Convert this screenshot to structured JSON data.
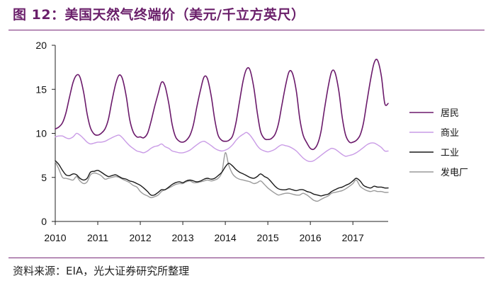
{
  "figure": {
    "title": "图 12：美国天然气终端价（美元/千立方英尺）",
    "source": "资料来源：EIA，光大证券研究所整理"
  },
  "colors": {
    "accent": "#6a1f6a",
    "residential": "#6b1a6b",
    "commercial": "#c99be6",
    "industrial": "#1a1a1a",
    "power": "#9a9a9a"
  },
  "chart_data": {
    "type": "line",
    "title": "",
    "xlabel": "",
    "ylabel": "",
    "xlim": [
      2010.0,
      2017.83
    ],
    "ylim": [
      0,
      20
    ],
    "yticks": [
      0,
      5,
      10,
      15,
      20
    ],
    "xticks": [
      "2010",
      "2011",
      "2012",
      "2013",
      "2014",
      "2015",
      "2016",
      "2017"
    ],
    "grid": false,
    "legend_position": "right",
    "series": [
      {
        "name": "居民",
        "color_key": "residential",
        "x": [
          2010.0,
          2010.08,
          2010.17,
          2010.25,
          2010.33,
          2010.42,
          2010.5,
          2010.58,
          2010.67,
          2010.75,
          2010.83,
          2010.92,
          2011.0,
          2011.08,
          2011.17,
          2011.25,
          2011.33,
          2011.42,
          2011.5,
          2011.58,
          2011.67,
          2011.75,
          2011.83,
          2011.92,
          2012.0,
          2012.08,
          2012.17,
          2012.25,
          2012.33,
          2012.42,
          2012.5,
          2012.58,
          2012.67,
          2012.75,
          2012.83,
          2012.92,
          2013.0,
          2013.08,
          2013.17,
          2013.25,
          2013.33,
          2013.42,
          2013.5,
          2013.58,
          2013.67,
          2013.75,
          2013.83,
          2013.92,
          2014.0,
          2014.08,
          2014.17,
          2014.25,
          2014.33,
          2014.42,
          2014.5,
          2014.58,
          2014.67,
          2014.75,
          2014.83,
          2014.92,
          2015.0,
          2015.08,
          2015.17,
          2015.25,
          2015.33,
          2015.42,
          2015.5,
          2015.58,
          2015.67,
          2015.75,
          2015.83,
          2015.92,
          2016.0,
          2016.08,
          2016.17,
          2016.25,
          2016.33,
          2016.42,
          2016.5,
          2016.58,
          2016.67,
          2016.75,
          2016.83,
          2016.92,
          2017.0,
          2017.08,
          2017.17,
          2017.25,
          2017.33,
          2017.42,
          2017.5,
          2017.58,
          2017.67,
          2017.75,
          2017.83
        ],
        "y": [
          10.5,
          10.7,
          11.2,
          12.3,
          14.0,
          15.8,
          16.6,
          16.4,
          14.6,
          12.2,
          10.6,
          9.9,
          9.8,
          10.0,
          10.5,
          11.6,
          13.6,
          15.6,
          16.6,
          16.2,
          14.2,
          11.6,
          10.2,
          9.6,
          9.6,
          9.5,
          10.0,
          11.3,
          12.9,
          14.5,
          15.8,
          15.4,
          13.4,
          11.0,
          9.6,
          9.1,
          9.0,
          9.2,
          9.8,
          11.0,
          13.0,
          15.0,
          16.4,
          16.2,
          14.2,
          11.6,
          9.8,
          9.2,
          9.1,
          9.2,
          9.7,
          11.2,
          13.5,
          16.0,
          17.3,
          17.2,
          15.2,
          12.4,
          10.2,
          9.4,
          9.3,
          9.4,
          9.9,
          11.1,
          13.2,
          15.5,
          17.0,
          16.8,
          14.8,
          11.7,
          9.8,
          8.9,
          8.3,
          8.2,
          8.8,
          10.2,
          12.7,
          15.3,
          17.0,
          16.9,
          14.8,
          11.8,
          9.8,
          9.0,
          9.0,
          9.2,
          9.8,
          11.2,
          13.6,
          16.2,
          18.0,
          18.3,
          16.5,
          13.4,
          13.4
        ]
      },
      {
        "name": "商业",
        "color_key": "commercial",
        "x": [
          2010.0,
          2010.08,
          2010.17,
          2010.25,
          2010.33,
          2010.42,
          2010.5,
          2010.58,
          2010.67,
          2010.75,
          2010.83,
          2010.92,
          2011.0,
          2011.08,
          2011.17,
          2011.25,
          2011.33,
          2011.42,
          2011.5,
          2011.58,
          2011.67,
          2011.75,
          2011.83,
          2011.92,
          2012.0,
          2012.08,
          2012.17,
          2012.25,
          2012.33,
          2012.42,
          2012.5,
          2012.58,
          2012.67,
          2012.75,
          2012.83,
          2012.92,
          2013.0,
          2013.08,
          2013.17,
          2013.25,
          2013.33,
          2013.42,
          2013.5,
          2013.58,
          2013.67,
          2013.75,
          2013.83,
          2013.92,
          2014.0,
          2014.08,
          2014.17,
          2014.25,
          2014.33,
          2014.42,
          2014.5,
          2014.58,
          2014.67,
          2014.75,
          2014.83,
          2014.92,
          2015.0,
          2015.08,
          2015.17,
          2015.25,
          2015.33,
          2015.42,
          2015.5,
          2015.58,
          2015.67,
          2015.75,
          2015.83,
          2015.92,
          2016.0,
          2016.08,
          2016.17,
          2016.25,
          2016.33,
          2016.42,
          2016.5,
          2016.58,
          2016.67,
          2016.75,
          2016.83,
          2016.92,
          2017.0,
          2017.08,
          2017.17,
          2017.25,
          2017.33,
          2017.42,
          2017.5,
          2017.58,
          2017.67,
          2017.75,
          2017.83
        ],
        "y": [
          9.6,
          9.7,
          9.7,
          9.5,
          9.4,
          9.6,
          10.0,
          9.8,
          9.4,
          9.0,
          8.8,
          8.9,
          9.0,
          9.0,
          9.1,
          9.3,
          9.5,
          9.7,
          9.8,
          9.5,
          9.0,
          8.6,
          8.3,
          8.0,
          7.9,
          7.8,
          8.0,
          8.3,
          8.5,
          8.6,
          8.8,
          8.5,
          8.3,
          8.0,
          7.9,
          7.8,
          7.8,
          7.9,
          8.1,
          8.4,
          8.7,
          9.0,
          9.1,
          8.9,
          8.6,
          8.3,
          8.1,
          8.0,
          8.1,
          8.3,
          8.7,
          9.2,
          9.6,
          9.9,
          10.1,
          9.8,
          9.2,
          8.6,
          8.2,
          8.0,
          7.9,
          8.0,
          8.2,
          8.5,
          8.7,
          8.6,
          8.5,
          8.3,
          8.0,
          7.6,
          7.2,
          6.9,
          6.8,
          6.9,
          7.2,
          7.5,
          7.8,
          8.1,
          8.3,
          8.2,
          7.9,
          7.6,
          7.4,
          7.5,
          7.6,
          7.8,
          8.1,
          8.4,
          8.7,
          8.9,
          8.9,
          8.7,
          8.4,
          8.0,
          8.0
        ]
      },
      {
        "name": "工业",
        "color_key": "industrial",
        "x": [
          2010.0,
          2010.08,
          2010.17,
          2010.25,
          2010.33,
          2010.42,
          2010.5,
          2010.58,
          2010.67,
          2010.75,
          2010.83,
          2010.92,
          2011.0,
          2011.08,
          2011.17,
          2011.25,
          2011.33,
          2011.42,
          2011.5,
          2011.58,
          2011.67,
          2011.75,
          2011.83,
          2011.92,
          2012.0,
          2012.08,
          2012.17,
          2012.25,
          2012.33,
          2012.42,
          2012.5,
          2012.58,
          2012.67,
          2012.75,
          2012.83,
          2012.92,
          2013.0,
          2013.08,
          2013.17,
          2013.25,
          2013.33,
          2013.42,
          2013.5,
          2013.58,
          2013.67,
          2013.75,
          2013.83,
          2013.92,
          2014.0,
          2014.08,
          2014.17,
          2014.25,
          2014.33,
          2014.42,
          2014.5,
          2014.58,
          2014.67,
          2014.75,
          2014.83,
          2014.92,
          2015.0,
          2015.08,
          2015.17,
          2015.25,
          2015.33,
          2015.42,
          2015.5,
          2015.58,
          2015.67,
          2015.75,
          2015.83,
          2015.92,
          2016.0,
          2016.08,
          2016.17,
          2016.25,
          2016.33,
          2016.42,
          2016.5,
          2016.58,
          2016.67,
          2016.75,
          2016.83,
          2016.92,
          2017.0,
          2017.08,
          2017.17,
          2017.25,
          2017.33,
          2017.42,
          2017.5,
          2017.58,
          2017.67,
          2017.75,
          2017.83
        ],
        "y": [
          6.9,
          6.5,
          5.8,
          5.3,
          5.2,
          5.4,
          5.3,
          4.9,
          4.7,
          4.9,
          5.6,
          5.7,
          5.8,
          5.6,
          5.3,
          5.1,
          5.2,
          5.3,
          5.1,
          4.9,
          4.8,
          4.6,
          4.5,
          4.3,
          4.1,
          3.8,
          3.4,
          3.0,
          3.0,
          3.3,
          3.6,
          3.6,
          3.9,
          4.2,
          4.4,
          4.5,
          4.4,
          4.6,
          4.7,
          4.6,
          4.5,
          4.6,
          4.8,
          4.9,
          4.8,
          4.9,
          5.2,
          5.6,
          6.2,
          6.6,
          6.3,
          5.9,
          5.6,
          5.4,
          5.2,
          5.0,
          4.9,
          5.1,
          5.4,
          5.1,
          4.9,
          4.5,
          4.0,
          3.7,
          3.6,
          3.6,
          3.7,
          3.6,
          3.5,
          3.6,
          3.6,
          3.4,
          3.3,
          3.1,
          3.0,
          2.9,
          3.0,
          3.1,
          3.4,
          3.6,
          3.8,
          3.9,
          4.1,
          4.3,
          4.6,
          4.9,
          4.6,
          4.1,
          3.9,
          3.8,
          4.0,
          3.9,
          3.9,
          3.8,
          3.8
        ]
      },
      {
        "name": "发电厂",
        "color_key": "power",
        "x": [
          2010.0,
          2010.08,
          2010.17,
          2010.25,
          2010.33,
          2010.42,
          2010.5,
          2010.58,
          2010.67,
          2010.75,
          2010.83,
          2010.92,
          2011.0,
          2011.08,
          2011.17,
          2011.25,
          2011.33,
          2011.42,
          2011.5,
          2011.58,
          2011.67,
          2011.75,
          2011.83,
          2011.92,
          2012.0,
          2012.08,
          2012.17,
          2012.25,
          2012.33,
          2012.42,
          2012.5,
          2012.58,
          2012.67,
          2012.75,
          2012.83,
          2012.92,
          2013.0,
          2013.08,
          2013.17,
          2013.25,
          2013.33,
          2013.42,
          2013.5,
          2013.58,
          2013.67,
          2013.75,
          2013.83,
          2013.92,
          2014.0,
          2014.08,
          2014.17,
          2014.25,
          2014.33,
          2014.42,
          2014.5,
          2014.58,
          2014.67,
          2014.75,
          2014.83,
          2014.92,
          2015.0,
          2015.08,
          2015.17,
          2015.25,
          2015.33,
          2015.42,
          2015.5,
          2015.58,
          2015.67,
          2015.75,
          2015.83,
          2015.92,
          2016.0,
          2016.08,
          2016.17,
          2016.25,
          2016.33,
          2016.42,
          2016.5,
          2016.58,
          2016.67,
          2016.75,
          2016.83,
          2016.92,
          2017.0,
          2017.08,
          2017.17,
          2017.25,
          2017.33,
          2017.42,
          2017.5,
          2017.58,
          2017.67,
          2017.75,
          2017.83
        ],
        "y": [
          6.8,
          6.0,
          5.0,
          4.9,
          4.8,
          4.7,
          5.1,
          4.6,
          4.3,
          4.5,
          5.3,
          5.5,
          5.4,
          5.2,
          4.8,
          4.9,
          5.0,
          5.1,
          5.0,
          4.8,
          4.6,
          4.4,
          4.1,
          3.9,
          3.4,
          3.1,
          2.9,
          2.7,
          2.8,
          3.0,
          3.4,
          3.6,
          3.8,
          4.0,
          4.2,
          4.3,
          4.3,
          4.5,
          4.6,
          4.4,
          4.4,
          4.5,
          4.6,
          4.7,
          4.6,
          4.7,
          4.9,
          5.6,
          7.8,
          6.4,
          5.4,
          5.0,
          4.8,
          4.7,
          4.6,
          4.5,
          4.3,
          4.4,
          4.6,
          4.2,
          3.8,
          3.5,
          3.2,
          3.0,
          3.1,
          3.2,
          3.2,
          3.1,
          3.0,
          3.0,
          3.2,
          3.0,
          2.7,
          2.4,
          2.3,
          2.5,
          2.7,
          2.9,
          3.2,
          3.3,
          3.4,
          3.5,
          3.7,
          4.0,
          4.3,
          4.7,
          4.0,
          3.7,
          3.5,
          3.4,
          3.5,
          3.4,
          3.4,
          3.3,
          3.3
        ]
      }
    ]
  }
}
